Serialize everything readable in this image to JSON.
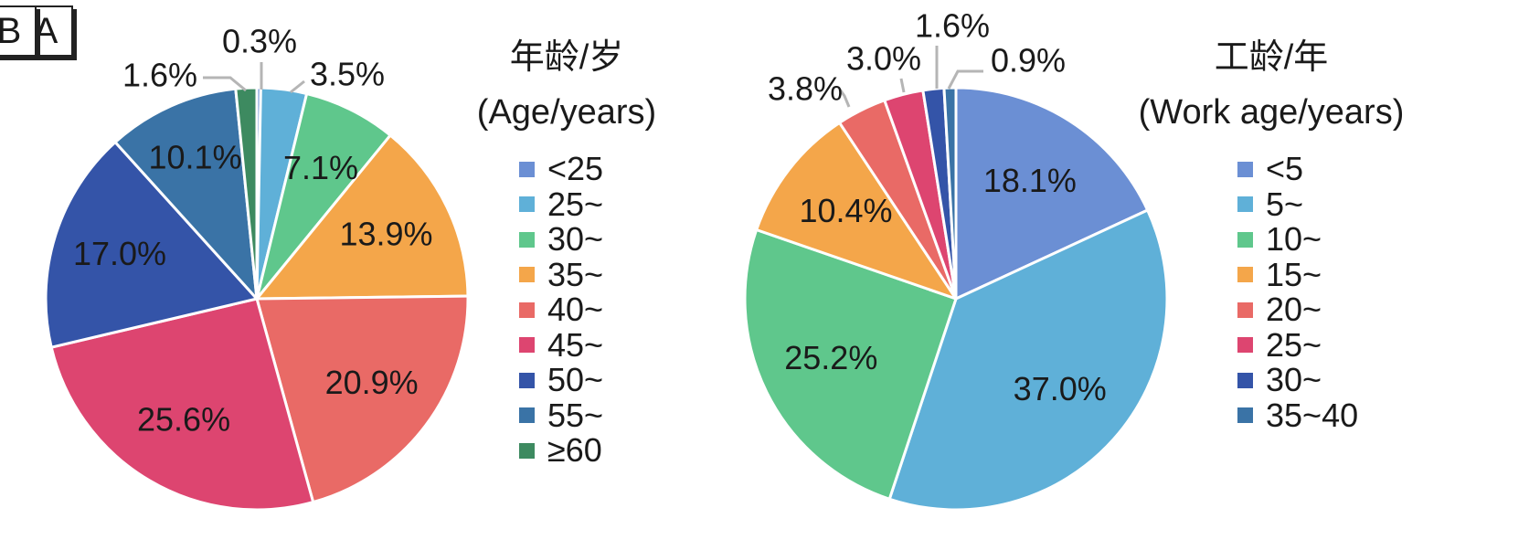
{
  "chart_data": [
    {
      "panel": "A",
      "type": "pie",
      "legend_title_cn": "年龄/岁",
      "legend_title_en": "(Age/years)",
      "categories": [
        "<25",
        "25~",
        "30~",
        "35~",
        "40~",
        "45~",
        "50~",
        "55~",
        "≥60"
      ],
      "values": [
        0.3,
        3.5,
        7.1,
        13.9,
        20.9,
        25.6,
        17.0,
        10.1,
        1.6
      ],
      "labels": [
        "0.3%",
        "3.5%",
        "7.1%",
        "13.9%",
        "20.9%",
        "25.6%",
        "17.0%",
        "10.1%",
        "1.6%"
      ],
      "colors": [
        "#6b8fd4",
        "#5fb0d8",
        "#5fc78c",
        "#f4a64a",
        "#e96a66",
        "#dd4570",
        "#3454a8",
        "#3a73a6",
        "#3d8a60"
      ],
      "legend_placement": "right"
    },
    {
      "panel": "B",
      "type": "pie",
      "legend_title_cn": "工龄/年",
      "legend_title_en": "(Work age/years)",
      "categories": [
        "<5",
        "5~",
        "10~",
        "15~",
        "20~",
        "25~",
        "30~",
        "35~40"
      ],
      "values": [
        18.1,
        37.0,
        25.2,
        10.4,
        3.8,
        3.0,
        1.6,
        0.9
      ],
      "labels": [
        "18.1%",
        "37.0%",
        "25.2%",
        "10.4%",
        "3.8%",
        "3.0%",
        "1.6%",
        "0.9%"
      ],
      "colors": [
        "#6b8fd4",
        "#5fb0d8",
        "#5fc78c",
        "#f4a64a",
        "#e96a66",
        "#dd4570",
        "#3454a8",
        "#3a73a6"
      ],
      "legend_placement": "right"
    }
  ]
}
